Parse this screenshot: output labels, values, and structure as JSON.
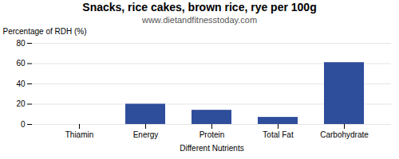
{
  "chart_data": {
    "type": "bar",
    "title": "Snacks, rice cakes, brown rice, rye per 100g",
    "subtitle": "www.dietandfitnesstoday.com",
    "categories": [
      "Thiamin",
      "Energy",
      "Protein",
      "Total Fat",
      "Carbohydrate"
    ],
    "values": [
      0,
      20,
      14,
      7,
      61
    ],
    "color": "#2e4d9b",
    "xlabel": "Different Nutrients",
    "ylabel": "Percentage of RDH (%)",
    "ylim": [
      0,
      80
    ],
    "yticks": [
      0,
      20,
      40,
      60,
      80
    ],
    "grid": true
  }
}
